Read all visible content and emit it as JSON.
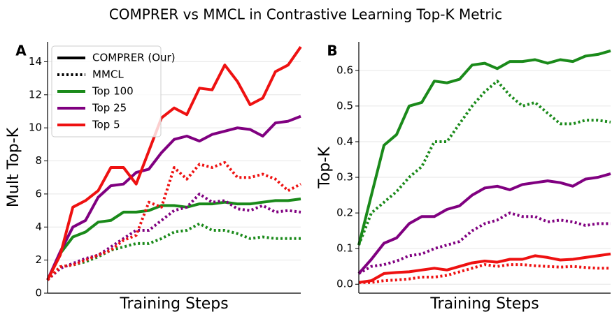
{
  "title": "COMPRER vs MMCL in Contrastive Learning Top-K Metric",
  "chart_data": [
    {
      "type": "line",
      "panel": "A",
      "y_label": "Mult Top-K",
      "x_label": "Training Steps",
      "categories": [
        null,
        null,
        null,
        null,
        null,
        null,
        null,
        null,
        null,
        null,
        null,
        null,
        null,
        null,
        null,
        null,
        null,
        null,
        null,
        null,
        null
      ],
      "ylim": [
        0,
        15.2
      ],
      "yticks": [
        0,
        2,
        4,
        6,
        8,
        10,
        12,
        14
      ],
      "grid": true,
      "legend": "upper left",
      "line_styles": [
        {
          "name": "COMPRER (Our)",
          "dash": "solid"
        },
        {
          "name": "MMCL",
          "dash": "dotted"
        }
      ],
      "series": [
        {
          "name": "Top 100",
          "color": "#1a8a1a",
          "lines": [
            [
              0.8,
              2.4,
              3.4,
              3.7,
              4.3,
              4.4,
              4.9,
              4.9,
              5.0,
              5.3,
              5.3,
              5.2,
              5.4,
              5.4,
              5.5,
              5.4,
              5.4,
              5.5,
              5.6,
              5.6,
              5.7
            ],
            [
              0.8,
              1.6,
              1.7,
              1.9,
              2.2,
              2.6,
              2.8,
              3.0,
              3.0,
              3.3,
              3.7,
              3.8,
              4.2,
              3.8,
              3.8,
              3.6,
              3.3,
              3.4,
              3.3,
              3.3,
              3.3
            ]
          ]
        },
        {
          "name": "Top 25",
          "color": "#800080",
          "lines": [
            [
              0.8,
              2.5,
              4.0,
              4.4,
              5.8,
              6.5,
              6.6,
              7.3,
              7.5,
              8.5,
              9.3,
              9.5,
              9.2,
              9.6,
              9.8,
              10.0,
              9.9,
              9.5,
              10.3,
              10.4,
              10.7
            ],
            [
              0.8,
              1.5,
              1.8,
              2.1,
              2.3,
              2.8,
              3.3,
              3.8,
              3.8,
              4.4,
              5.0,
              5.2,
              6.0,
              5.5,
              5.6,
              5.1,
              5.0,
              5.3,
              4.9,
              5.0,
              4.9
            ]
          ]
        },
        {
          "name": "Top 5",
          "color": "#ee1111",
          "lines": [
            [
              0.8,
              2.3,
              5.2,
              5.6,
              6.2,
              7.6,
              7.6,
              6.6,
              8.6,
              10.6,
              11.2,
              10.8,
              12.4,
              12.3,
              13.8,
              12.8,
              11.4,
              11.8,
              13.4,
              13.8,
              14.9
            ],
            [
              0.8,
              1.6,
              1.7,
              2.0,
              2.3,
              2.6,
              3.2,
              3.5,
              5.5,
              5.2,
              7.6,
              6.9,
              7.8,
              7.6,
              7.9,
              7.0,
              7.0,
              7.2,
              6.9,
              6.2,
              6.6
            ]
          ]
        }
      ]
    },
    {
      "type": "line",
      "panel": "B",
      "y_label": "Top-K",
      "x_label": "Training Steps",
      "categories": [
        null,
        null,
        null,
        null,
        null,
        null,
        null,
        null,
        null,
        null,
        null,
        null,
        null,
        null,
        null,
        null,
        null,
        null,
        null,
        null,
        null
      ],
      "ylim": [
        -0.025,
        0.68
      ],
      "yticks": [
        {
          "value": 0,
          "label": "0.0"
        },
        0.1,
        0.2,
        0.3,
        0.4,
        0.5,
        0.6
      ],
      "grid": true,
      "line_styles": [
        {
          "dash": "solid"
        },
        {
          "dash": "dotted"
        }
      ],
      "series": [
        {
          "color": "#1a8a1a",
          "lines": [
            [
              0.11,
              0.25,
              0.39,
              0.42,
              0.5,
              0.51,
              0.57,
              0.565,
              0.575,
              0.615,
              0.62,
              0.605,
              0.625,
              0.625,
              0.63,
              0.62,
              0.63,
              0.625,
              0.64,
              0.645,
              0.655
            ],
            [
              0.11,
              0.2,
              0.23,
              0.26,
              0.3,
              0.33,
              0.4,
              0.4,
              0.45,
              0.5,
              0.54,
              0.57,
              0.53,
              0.5,
              0.51,
              0.48,
              0.45,
              0.45,
              0.46,
              0.46,
              0.455
            ]
          ]
        },
        {
          "color": "#800080",
          "lines": [
            [
              0.03,
              0.07,
              0.115,
              0.13,
              0.17,
              0.19,
              0.19,
              0.21,
              0.22,
              0.25,
              0.27,
              0.275,
              0.265,
              0.28,
              0.285,
              0.29,
              0.285,
              0.275,
              0.295,
              0.3,
              0.31
            ],
            [
              0.03,
              0.05,
              0.055,
              0.065,
              0.08,
              0.085,
              0.1,
              0.11,
              0.12,
              0.15,
              0.17,
              0.18,
              0.2,
              0.19,
              0.19,
              0.175,
              0.18,
              0.175,
              0.165,
              0.17,
              0.17
            ]
          ]
        },
        {
          "color": "#ee1111",
          "lines": [
            [
              0.005,
              0.01,
              0.03,
              0.033,
              0.035,
              0.04,
              0.045,
              0.04,
              0.05,
              0.06,
              0.065,
              0.062,
              0.07,
              0.07,
              0.08,
              0.075,
              0.068,
              0.07,
              0.075,
              0.08,
              0.085
            ],
            [
              0.005,
              0.005,
              0.01,
              0.012,
              0.015,
              0.02,
              0.02,
              0.025,
              0.035,
              0.045,
              0.055,
              0.05,
              0.055,
              0.055,
              0.052,
              0.05,
              0.048,
              0.05,
              0.047,
              0.045,
              0.045
            ]
          ]
        }
      ]
    }
  ]
}
